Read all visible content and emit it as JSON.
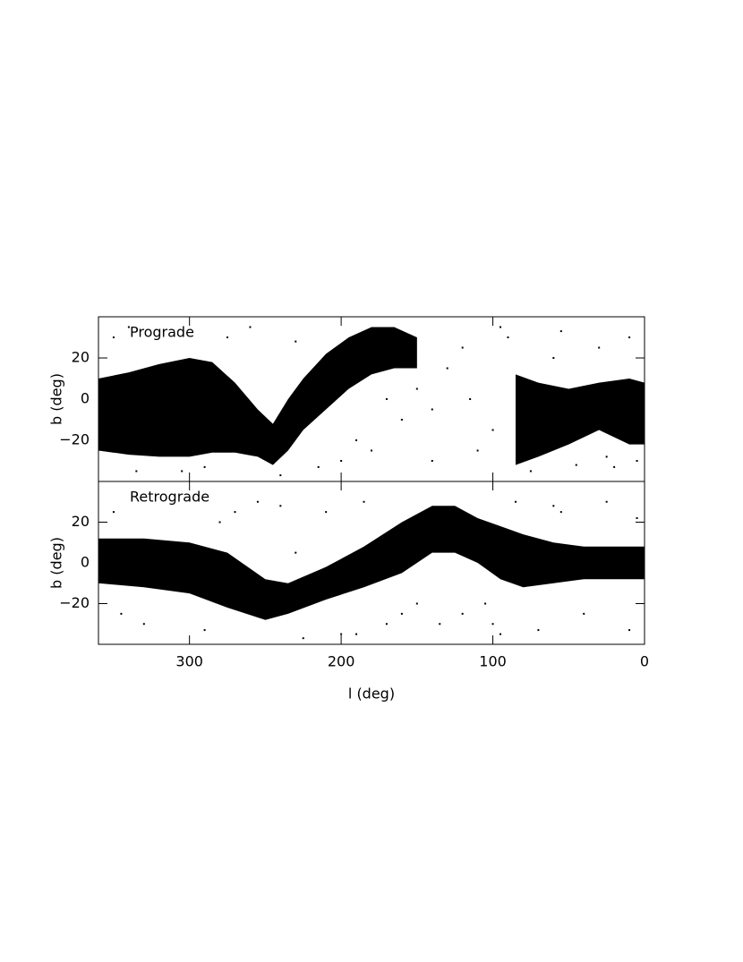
{
  "chart_data": [
    {
      "type": "scatter",
      "label": "Prograde",
      "ylabel": "b (deg)",
      "color": "#000000",
      "xlim": [
        360,
        0
      ],
      "ylim": [
        -40,
        40
      ],
      "yticks": [
        20,
        0,
        {
          "value": -20,
          "label": "−20"
        }
      ],
      "band": {
        "x": [
          360,
          340,
          320,
          300,
          285,
          270,
          255,
          245,
          235,
          225,
          210,
          195,
          180,
          165,
          150,
          null,
          85,
          70,
          50,
          30,
          10,
          0
        ],
        "upper": [
          10,
          13,
          17,
          20,
          18,
          8,
          -5,
          -12,
          0,
          10,
          22,
          30,
          35,
          35,
          30,
          null,
          12,
          8,
          5,
          8,
          10,
          8
        ],
        "lower": [
          -25,
          -27,
          -28,
          -28,
          -26,
          -26,
          -28,
          -32,
          -25,
          -15,
          -5,
          5,
          12,
          15,
          15,
          null,
          -32,
          -28,
          -22,
          -15,
          -22,
          -22
        ]
      },
      "points": {
        "x": [
          350,
          335,
          320,
          305,
          290,
          275,
          260,
          240,
          230,
          215,
          200,
          190,
          170,
          160,
          150,
          140,
          130,
          120,
          110,
          100,
          95,
          75,
          60,
          45,
          30,
          20,
          10,
          5,
          340,
          250,
          180,
          140,
          115,
          90,
          55,
          25
        ],
        "y": [
          30,
          -35,
          32,
          -35,
          -33,
          30,
          35,
          -37,
          28,
          -33,
          -30,
          -20,
          0,
          -10,
          5,
          -5,
          15,
          25,
          -25,
          -15,
          35,
          -35,
          20,
          -32,
          25,
          -33,
          30,
          -30,
          35,
          -20,
          -25,
          -30,
          0,
          30,
          33,
          -28
        ]
      }
    },
    {
      "type": "scatter",
      "label": "Retrograde",
      "ylabel": "b (deg)",
      "xlabel": "l (deg)",
      "color": "#000000",
      "xlim": [
        360,
        0
      ],
      "ylim": [
        -40,
        40
      ],
      "xticks": [
        300,
        200,
        100,
        0
      ],
      "yticks": [
        20,
        0,
        {
          "value": -20,
          "label": "−20"
        }
      ],
      "band": {
        "x": [
          360,
          330,
          300,
          275,
          250,
          235,
          210,
          185,
          160,
          140,
          125,
          110,
          95,
          80,
          60,
          40,
          20,
          0
        ],
        "upper": [
          12,
          12,
          10,
          5,
          -8,
          -10,
          -2,
          8,
          20,
          28,
          28,
          22,
          18,
          14,
          10,
          8,
          8,
          8
        ],
        "lower": [
          -10,
          -12,
          -15,
          -22,
          -28,
          -25,
          -18,
          -12,
          -5,
          5,
          5,
          0,
          -8,
          -12,
          -10,
          -8,
          -8,
          -8
        ]
      },
      "points": {
        "x": [
          350,
          330,
          310,
          290,
          270,
          255,
          240,
          225,
          210,
          200,
          185,
          170,
          160,
          150,
          135,
          120,
          105,
          95,
          85,
          70,
          55,
          40,
          25,
          10,
          5,
          345,
          280,
          230,
          190,
          150,
          100,
          60
        ],
        "y": [
          25,
          -30,
          30,
          -33,
          25,
          30,
          28,
          -37,
          25,
          -35,
          30,
          -30,
          -25,
          -20,
          -30,
          -25,
          -20,
          -35,
          30,
          -33,
          25,
          -25,
          30,
          -33,
          22,
          -25,
          20,
          5,
          -35,
          15,
          -30,
          28
        ]
      }
    }
  ]
}
